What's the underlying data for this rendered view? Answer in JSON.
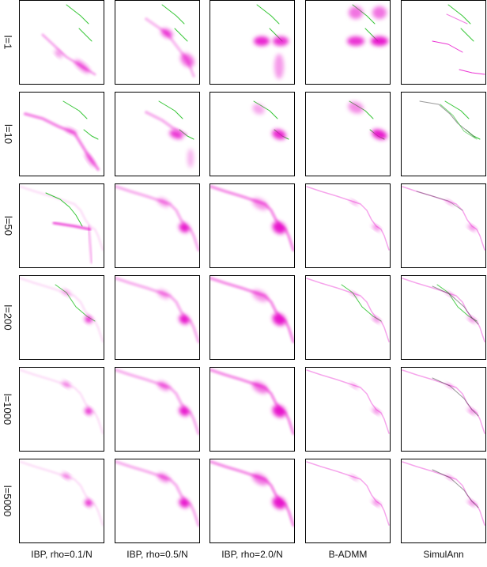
{
  "row_labels": [
    "l=1",
    "l=10",
    "l=50",
    "l=200",
    "l=1000",
    "l=5000"
  ],
  "col_labels": [
    "IBP, rho=0.1/N",
    "IBP, rho=0.5/N",
    "IBP, rho=2.0/N",
    "B-ADMM",
    "SimulAnn"
  ],
  "colors": {
    "mass": "#e600c8",
    "reference": "#1fbf1f",
    "frame": "#000000"
  }
}
